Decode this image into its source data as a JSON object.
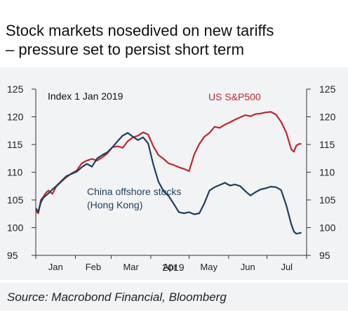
{
  "title_line1": "Stock markets nosedived on new tariffs",
  "title_line2": "– pressure set to persist short term",
  "source": "Source: Macrobond Financial, Bloomberg",
  "chart_data": {
    "type": "line",
    "annotation": "Index 1 Jan 2019",
    "xlabel": "2019",
    "ylim": [
      95,
      125
    ],
    "yticks": [
      95,
      100,
      105,
      110,
      115,
      120,
      125
    ],
    "xticks": [
      "Jan",
      "Feb",
      "Mar",
      "Apr",
      "May",
      "Jun",
      "Jul"
    ],
    "xlim": [
      0,
      212
    ],
    "colors": {
      "sp500": "#c0272d",
      "china": "#1d3f5e"
    },
    "series": [
      {
        "name": "US S&P500",
        "x": [
          0,
          2,
          4,
          6,
          8,
          10,
          13,
          16,
          20,
          24,
          28,
          32,
          36,
          40,
          44,
          48,
          52,
          56,
          60,
          64,
          68,
          72,
          76,
          80,
          84,
          88,
          92,
          96,
          100,
          104,
          108,
          112,
          116,
          120,
          124,
          128,
          132,
          136,
          140,
          144,
          148,
          152,
          156,
          160,
          164,
          168,
          172,
          176,
          180,
          184,
          188,
          192,
          196,
          200,
          202,
          204,
          206,
          208
        ],
        "values": [
          103,
          102.6,
          105,
          105.6,
          106.3,
          106.7,
          106.1,
          107.4,
          108.3,
          109.1,
          109.8,
          110.3,
          111.6,
          112.1,
          112.4,
          112.1,
          112.7,
          113.4,
          114.5,
          114.7,
          114.4,
          115.6,
          116.3,
          116.6,
          117.2,
          116.8,
          114.7,
          113.1,
          112.4,
          111.6,
          111.3,
          110.9,
          110.6,
          110.2,
          113.2,
          115.1,
          116.4,
          117.1,
          118.2,
          118.0,
          118.6,
          119.0,
          119.5,
          119.9,
          120.3,
          120.1,
          120.5,
          120.6,
          120.8,
          120.9,
          120.4,
          119.1,
          117.2,
          114.1,
          113.7,
          114.8,
          115.1,
          115.1
        ]
      },
      {
        "name": "China offshore stocks (Hong Kong)",
        "x": [
          0,
          2,
          4,
          6,
          8,
          10,
          13,
          16,
          20,
          24,
          28,
          32,
          36,
          40,
          44,
          48,
          52,
          56,
          60,
          64,
          68,
          72,
          76,
          80,
          84,
          88,
          92,
          96,
          100,
          104,
          108,
          112,
          116,
          120,
          124,
          128,
          132,
          136,
          140,
          144,
          148,
          152,
          156,
          160,
          164,
          168,
          172,
          176,
          180,
          184,
          188,
          192,
          196,
          200,
          202,
          204,
          206,
          208
        ],
        "values": [
          103.5,
          102.9,
          104.6,
          105.4,
          105.8,
          106.2,
          106.9,
          107.5,
          108.4,
          109.3,
          109.7,
          110.1,
          110.9,
          111.5,
          111.0,
          112.5,
          113.1,
          113.6,
          114.5,
          115.6,
          116.6,
          117.1,
          116.4,
          115.8,
          116.3,
          115.2,
          111.4,
          108.3,
          106.6,
          105.7,
          104.3,
          102.8,
          102.6,
          102.8,
          102.4,
          102.6,
          104.4,
          106.7,
          107.3,
          107.7,
          108.1,
          107.6,
          107.8,
          107.5,
          106.6,
          105.8,
          106.4,
          106.9,
          107.1,
          107.4,
          107.3,
          106.8,
          104.1,
          100.6,
          99.3,
          98.9,
          99.0,
          99.1
        ]
      }
    ]
  }
}
